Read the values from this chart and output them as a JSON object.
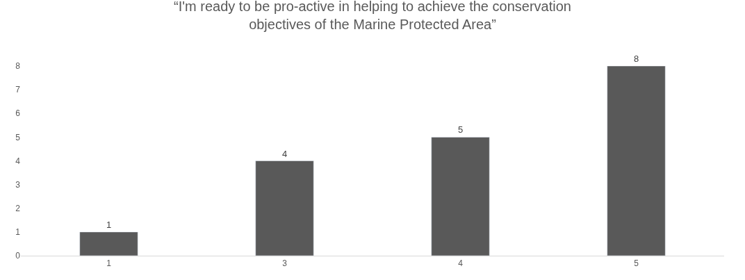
{
  "chart_data": {
    "type": "bar",
    "title": "“I'm ready to be pro-active in helping to achieve the conservation objectives of the Marine Protected Area”",
    "categories": [
      "1",
      "3",
      "4",
      "5"
    ],
    "values": [
      1,
      4,
      5,
      8
    ],
    "color": "#595959",
    "ylim": [
      0,
      8
    ],
    "yticks": [
      0,
      1,
      2,
      3,
      4,
      5,
      6,
      7,
      8
    ],
    "grid": false,
    "legend": false,
    "data_labels": true
  }
}
